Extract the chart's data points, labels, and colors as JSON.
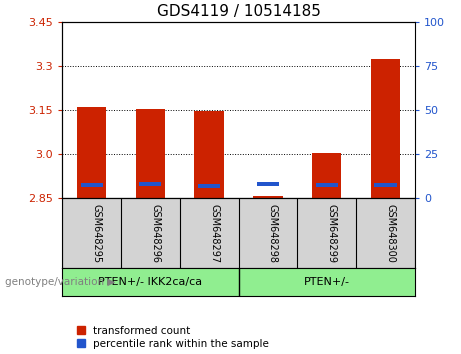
{
  "title": "GDS4119 / 10514185",
  "samples": [
    "GSM648295",
    "GSM648296",
    "GSM648297",
    "GSM648298",
    "GSM648299",
    "GSM648300"
  ],
  "red_values": [
    3.16,
    3.155,
    3.145,
    2.858,
    3.005,
    3.325
  ],
  "blue_values": [
    2.893,
    2.897,
    2.892,
    2.897,
    2.893,
    2.895
  ],
  "ymin": 2.85,
  "ymax": 3.45,
  "y_ticks_left": [
    2.85,
    3.0,
    3.15,
    3.3,
    3.45
  ],
  "y_ticks_right": [
    0,
    25,
    50,
    75,
    100
  ],
  "bar_color_red": "#cc2200",
  "bar_color_blue": "#2255cc",
  "group1_label": "PTEN+/- IKK2ca/ca",
  "group2_label": "PTEN+/-",
  "group1_color": "#90ee90",
  "group2_color": "#90ee90",
  "xlabel_left": "genotype/variation",
  "legend_red": "transformed count",
  "legend_blue": "percentile rank within the sample",
  "tick_color_left": "#cc2200",
  "tick_color_right": "#2255cc",
  "bar_width": 0.5,
  "sample_bg": "#d3d3d3",
  "plot_bg": "#ffffff"
}
